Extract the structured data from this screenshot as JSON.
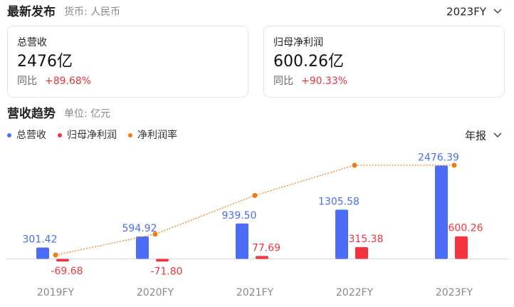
{
  "header": {
    "title": "最新发布",
    "currency": "货币: 人民币",
    "period": "2023FY"
  },
  "cards": [
    {
      "label": "总营收",
      "value": "2476亿",
      "yoy_label": "同比",
      "yoy": "+89.68%"
    },
    {
      "label": "归母净利润",
      "value": "600.26亿",
      "yoy_label": "同比",
      "yoy": "+90.33%"
    }
  ],
  "chart_data": {
    "type": "bar",
    "title": "营收趋势",
    "subtitle": "单位: 亿元",
    "period": "年报",
    "categories": [
      "2019FY",
      "2020FY",
      "2021FY",
      "2022FY",
      "2023FY"
    ],
    "series": [
      {
        "name": "总营收",
        "color": "#4a6cf7",
        "values": [
          301.42,
          594.92,
          939.5,
          1305.58,
          2476.39
        ],
        "value_labels": [
          "301.42",
          "594.92",
          "939.50",
          "1305.58",
          "2476.39"
        ]
      },
      {
        "name": "归母净利润",
        "color": "#f5333f",
        "values": [
          -69.68,
          -71.8,
          77.69,
          315.38,
          600.26
        ],
        "value_labels": [
          "-69.68",
          "-71.80",
          "77.69",
          "315.38",
          "600.26"
        ]
      },
      {
        "name": "净利润率",
        "color": "#f07a10",
        "type": "line",
        "axis": "y2",
        "values": [
          -23.1,
          -12.1,
          8.3,
          24.2,
          24.2
        ]
      }
    ]
  }
}
